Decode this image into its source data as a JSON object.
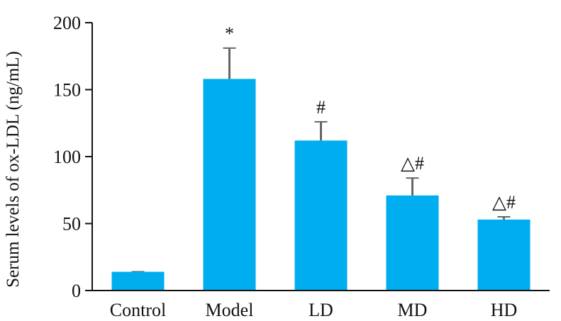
{
  "chart_data": {
    "type": "bar",
    "title": "",
    "xlabel": "",
    "ylabel": "Serum levels of ox-LDL (ng/mL)",
    "ylim": [
      0,
      200
    ],
    "yticks": [
      "0",
      "50",
      "100",
      "150",
      "200"
    ],
    "categories": [
      "Control",
      "Model",
      "LD",
      "MD",
      "HD"
    ],
    "values": [
      14,
      158,
      112,
      71,
      53
    ],
    "error": [
      0,
      23,
      14,
      13,
      2
    ],
    "annotations": [
      "",
      "*",
      "#",
      "△#",
      "△#"
    ],
    "grid": false,
    "legend": "none",
    "colors": {
      "bar": "#00ADEF",
      "error_bar": "#666666",
      "axis": "#111111",
      "text": "#111111"
    }
  }
}
